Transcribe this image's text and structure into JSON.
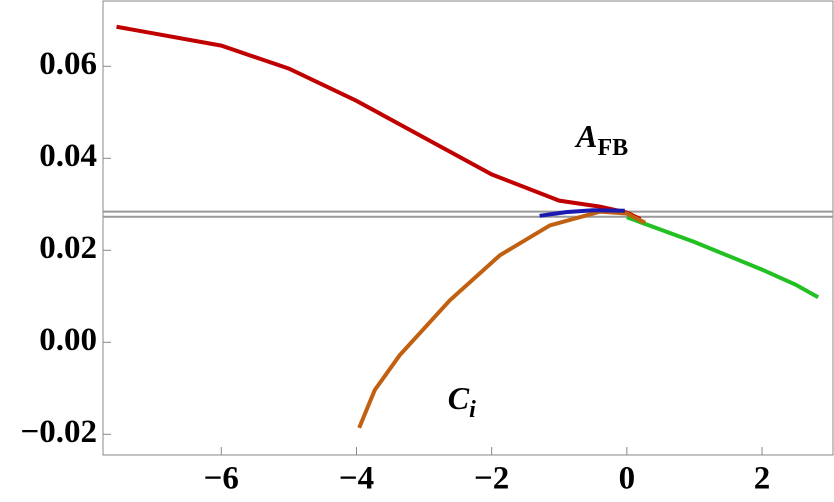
{
  "chart_data": {
    "type": "line",
    "xlim": [
      -7.75,
      3.05
    ],
    "ylim": [
      -0.0245,
      0.0742
    ],
    "xticks": [
      {
        "value": -6,
        "label": "−6"
      },
      {
        "value": -4,
        "label": "−4"
      },
      {
        "value": -2,
        "label": "−2"
      },
      0,
      2
    ],
    "yticks": [
      {
        "value": -0.02,
        "label": "−0.02"
      },
      {
        "value": 0,
        "label": "0.00"
      },
      0.02,
      0.04,
      0.06
    ],
    "series": [
      {
        "color": "#999999",
        "x": [
          -7.75,
          3.05
        ],
        "values": [
          0.0284,
          0.0284
        ]
      },
      {
        "color": "#999999",
        "x": [
          -7.75,
          3.05
        ],
        "values": [
          0.0273,
          0.0273
        ]
      },
      {
        "color": "#c00000",
        "x": [
          -7.55,
          -6,
          -5,
          -4,
          -3,
          -2,
          -1,
          -0.4,
          0,
          0.2
        ],
        "values": [
          0.0686,
          0.0645,
          0.0595,
          0.0525,
          0.0445,
          0.0365,
          0.0308,
          0.0295,
          0.0282,
          0.0268
        ]
      },
      {
        "color": "#22c022",
        "x": [
          0,
          0.5,
          1,
          1.5,
          2,
          2.5,
          2.83
        ],
        "values": [
          0.0272,
          0.0245,
          0.0218,
          0.0188,
          0.0158,
          0.0125,
          0.0098
        ]
      },
      {
        "color": "#c06010",
        "x": [
          -3.96,
          -3.73,
          -3.36,
          -2.62,
          -1.88,
          -1.14,
          -0.4,
          0,
          0.27
        ],
        "values": [
          -0.0186,
          -0.0104,
          -0.0028,
          0.0091,
          0.0189,
          0.0254,
          0.0284,
          0.028,
          0.026
        ]
      },
      {
        "color": "#1a1ab0",
        "x": [
          -1.29,
          -0.9,
          -0.5,
          -0.03
        ],
        "values": [
          0.0275,
          0.0283,
          0.0287,
          0.0286
        ]
      }
    ],
    "annotations": [
      {
        "text": "A",
        "subscript": "FB",
        "x": -0.75,
        "y": 0.0425
      },
      {
        "text": "C",
        "subscript": "i",
        "x": -2.65,
        "y": -0.0145
      }
    ]
  }
}
